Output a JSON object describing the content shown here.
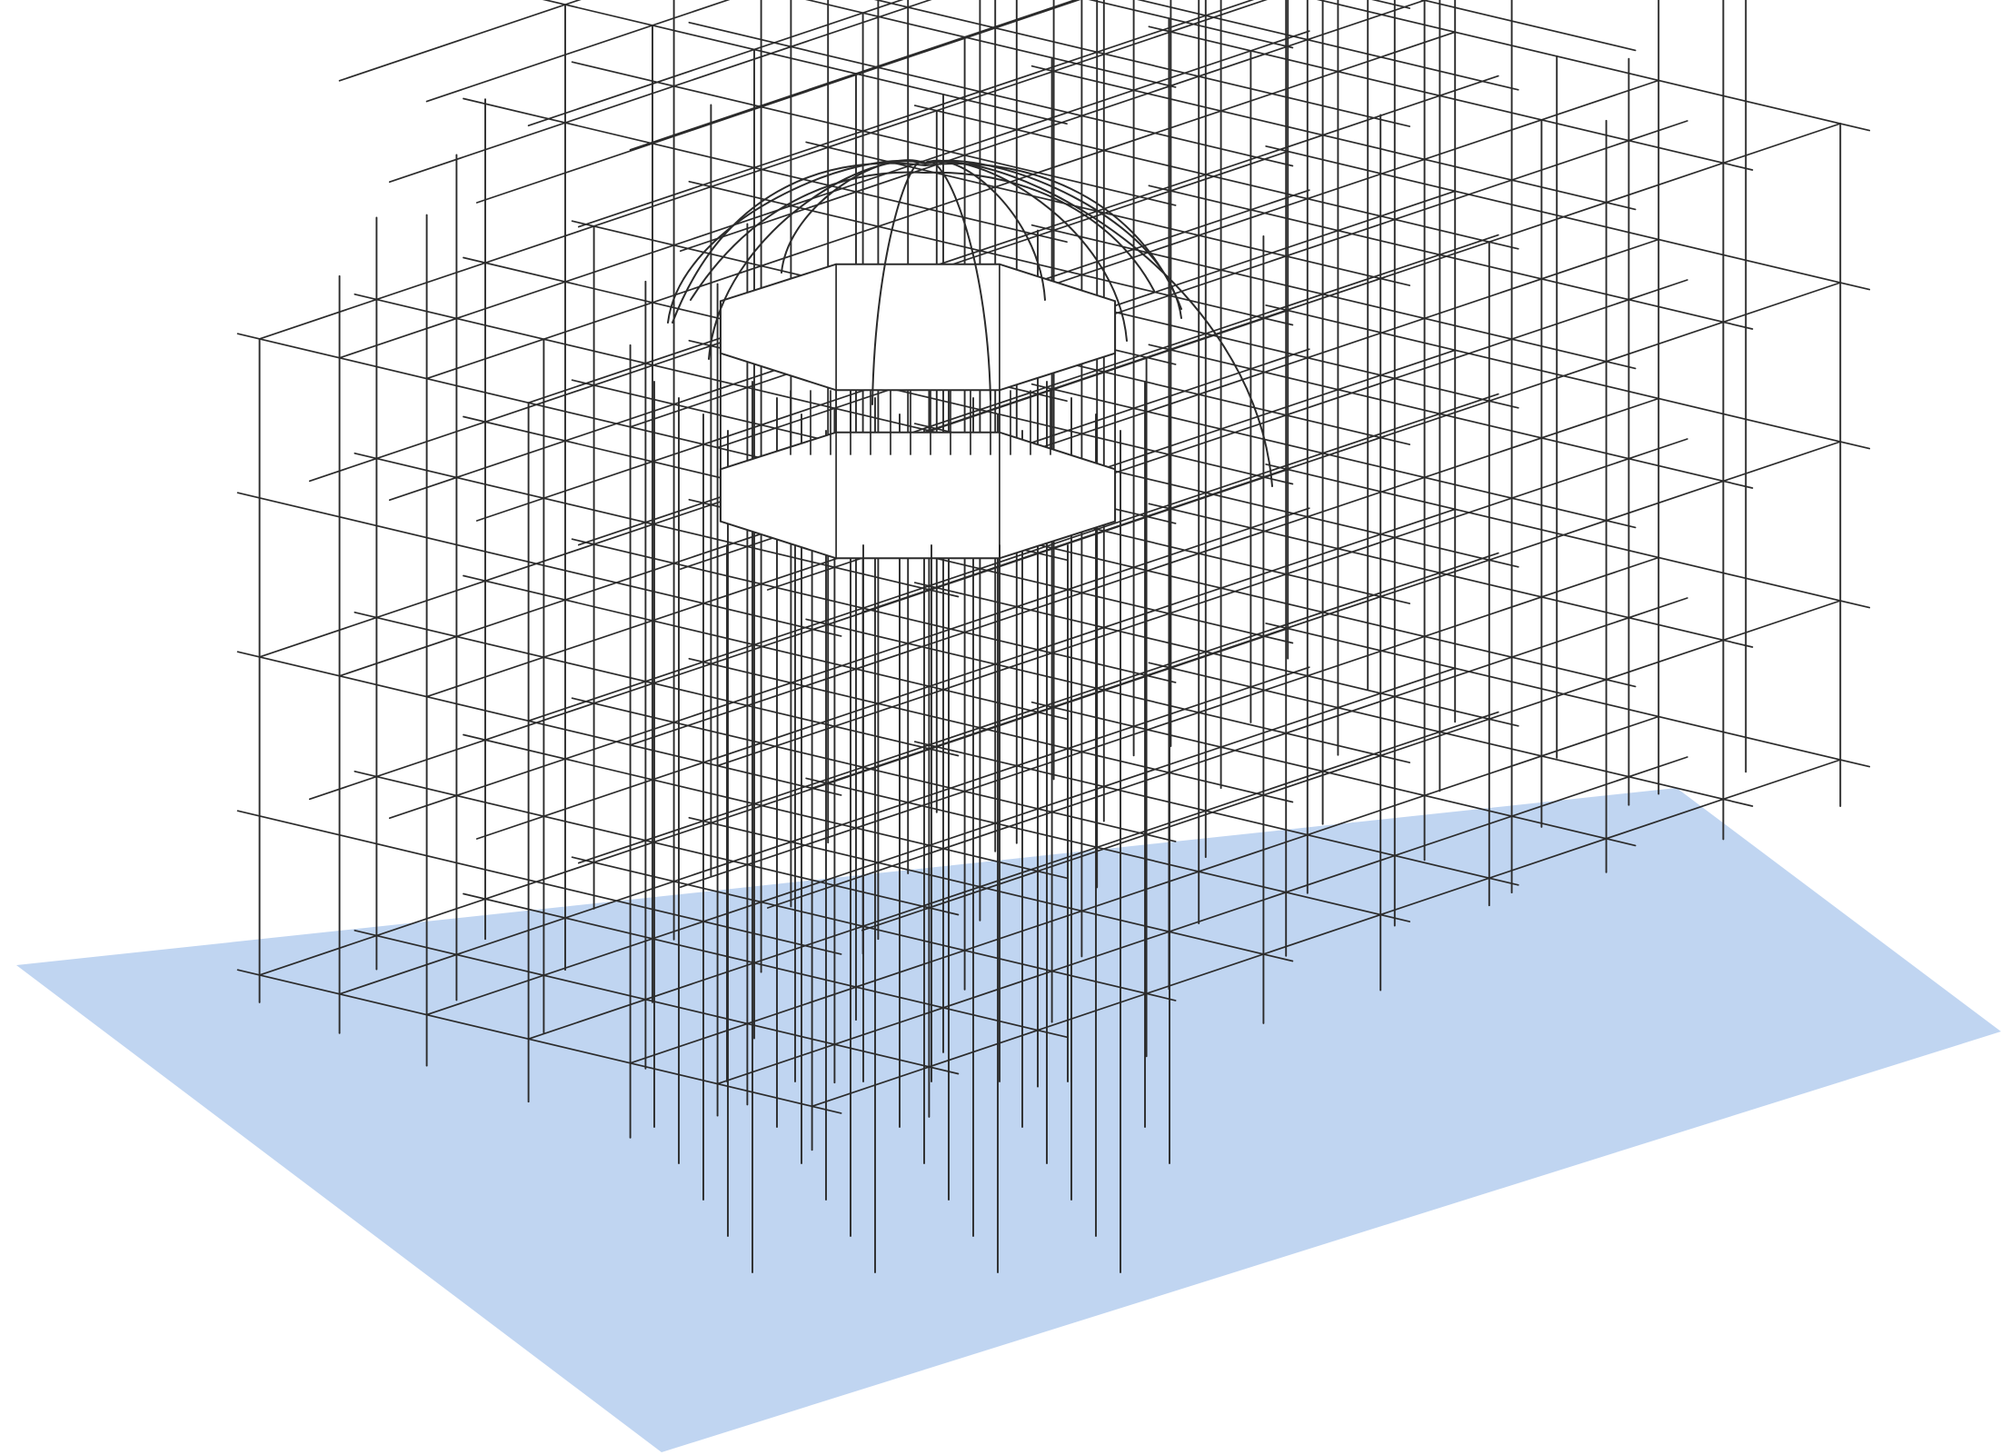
{
  "scene": {
    "colors": {
      "background": "#ffffff",
      "ground_plane": "#c0d5f1",
      "wire": "#2b2b2b",
      "octagon_fill": "#ffffff"
    },
    "objects": [
      "ground-plane",
      "scaffold-grid",
      "octagonal-drum",
      "dome"
    ]
  }
}
